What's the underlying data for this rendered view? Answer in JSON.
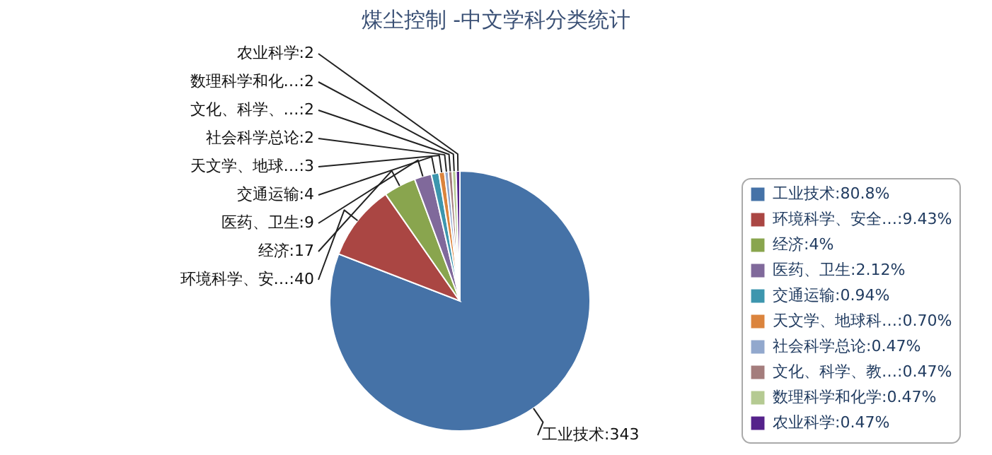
{
  "chart_data": {
    "type": "pie",
    "title": "煤尘控制 -中文学科分类统计",
    "categories": [
      "工业技术:80.8%",
      "环境科学、安全…:9.43%",
      "经济:4%",
      "医药、卫生:2.12%",
      "交通运输:0.94%",
      "天文学、地球科…:0.70%",
      "社会科学总论:0.47%",
      "文化、科学、教…:0.47%",
      "数理科学和化学:0.47%",
      "农业科学:0.47%"
    ],
    "values": [
      343,
      40,
      17,
      9,
      4,
      3,
      2,
      2,
      2,
      2
    ],
    "value_labels": [
      "工业技术:343",
      "环境科学、安…:40",
      "经济:17",
      "医药、卫生:9",
      "交通运输:4",
      "天文学、地球…:3",
      "社会科学总论:2",
      "文化、科学、…:2",
      "数理科学和化…:2",
      "农业科学:2"
    ],
    "colors": [
      "#4572a7",
      "#aa4643",
      "#89a54e",
      "#80699b",
      "#3d96ae",
      "#db843d",
      "#92a8cd",
      "#a47d7c",
      "#b5ca92",
      "#55228b"
    ],
    "legend": "right"
  }
}
